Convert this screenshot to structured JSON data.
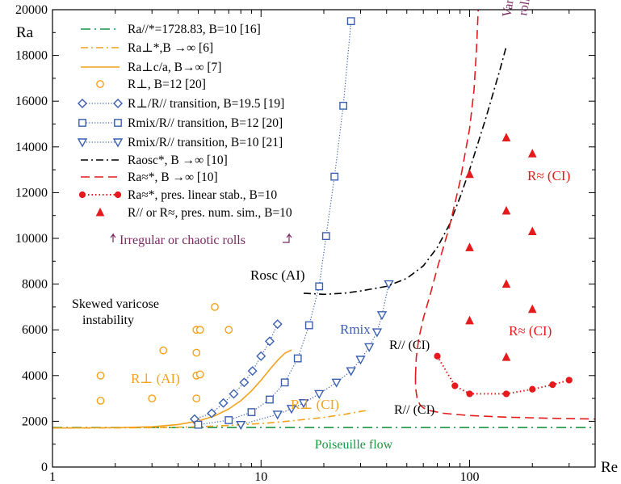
{
  "colors": {
    "green": "#1a9641",
    "orange": "#f4a11c",
    "blue": "#3a5fb0",
    "red": "#e41a1c",
    "purple": "#7a2860",
    "black": "#000000"
  },
  "chart_data": {
    "type": "line",
    "xscale": "log",
    "xlim": [
      1,
      400
    ],
    "ylim": [
      0,
      20000
    ],
    "xlabel": "Re",
    "ylabel": "Ra",
    "xticks": [
      1,
      10,
      100
    ],
    "yticks": [
      0,
      2000,
      4000,
      6000,
      8000,
      10000,
      12000,
      14000,
      16000,
      18000,
      20000
    ],
    "grid": false,
    "legend_position": "top-left",
    "legend": [
      {
        "text": "Ra//*=1728.83, B=10 [16]",
        "style": "dashdot-long",
        "color": "green"
      },
      {
        "text": "Ra⊥*,B →∞ [6]",
        "style": "dashdot",
        "color": "orange"
      },
      {
        "text": "Ra⊥c/a, B→∞ [7]",
        "style": "solid",
        "color": "orange"
      },
      {
        "text": "R⊥, B=12 [20]",
        "style": "circle",
        "color": "orange"
      },
      {
        "text": "R⊥/R// transition, B=19.5 [19]",
        "style": "dotted-diamond",
        "color": "blue"
      },
      {
        "text": "Rmix/R// transition, B=12 [20]",
        "style": "dotted-square",
        "color": "blue"
      },
      {
        "text": "Rmix/R// transition, B=10 [21]",
        "style": "dotted-triangle-down",
        "color": "blue"
      },
      {
        "text": "Raosc*, B →∞ [10]",
        "style": "dashdot",
        "color": "black"
      },
      {
        "text": "Ra≈*, B →∞ [10]",
        "style": "dashed",
        "color": "red"
      },
      {
        "text": "Ra≈*, pres. linear stab., B=10",
        "style": "dotted-dot",
        "color": "red"
      },
      {
        "text": "R// or R≈, pres. num. sim., B=10",
        "style": "triangle-up",
        "color": "red"
      }
    ],
    "series": [
      {
        "id": "ra_par_b10",
        "style": "dashdot-long",
        "color": "green",
        "points": [
          [
            1,
            1728.83
          ],
          [
            400,
            1728.83
          ]
        ]
      },
      {
        "id": "ra_perp_inf",
        "style": "dashdot",
        "color": "orange",
        "points": [
          [
            1,
            1708
          ],
          [
            2,
            1710
          ],
          [
            3,
            1720
          ],
          [
            5,
            1760
          ],
          [
            7,
            1820
          ],
          [
            10,
            1900
          ],
          [
            12,
            1960
          ],
          [
            15,
            2050
          ],
          [
            20,
            2170
          ],
          [
            25,
            2300
          ],
          [
            30,
            2430
          ],
          [
            32,
            2470
          ]
        ]
      },
      {
        "id": "ra_perp_ca",
        "style": "solid",
        "color": "orange",
        "points": [
          [
            1,
            1708
          ],
          [
            2,
            1720
          ],
          [
            3,
            1760
          ],
          [
            4,
            1860
          ],
          [
            5,
            2010
          ],
          [
            6,
            2240
          ],
          [
            7,
            2540
          ],
          [
            8,
            2900
          ],
          [
            9,
            3330
          ],
          [
            10,
            3800
          ],
          [
            11,
            4260
          ],
          [
            12,
            4660
          ],
          [
            13,
            4980
          ],
          [
            14,
            5120
          ]
        ]
      },
      {
        "id": "r_perp_b12",
        "style": "circle",
        "color": "orange",
        "points": [
          [
            1.7,
            2900
          ],
          [
            1.7,
            4000
          ],
          [
            3.0,
            3000
          ],
          [
            3.4,
            5100
          ],
          [
            4.9,
            2000
          ],
          [
            4.9,
            3000
          ],
          [
            4.9,
            4000
          ],
          [
            4.9,
            5000
          ],
          [
            4.9,
            6000
          ],
          [
            5.1,
            4050
          ],
          [
            5.1,
            6000
          ],
          [
            6.0,
            7000
          ],
          [
            7.0,
            6000
          ]
        ]
      },
      {
        "id": "perp_par_b195",
        "style": "dotted-diamond",
        "color": "blue",
        "points": [
          [
            4.8,
            2100
          ],
          [
            5.8,
            2350
          ],
          [
            6.6,
            2800
          ],
          [
            7.4,
            3200
          ],
          [
            8.3,
            3700
          ],
          [
            9.1,
            4200
          ],
          [
            10.0,
            4850
          ],
          [
            11.0,
            5500
          ],
          [
            12.0,
            6250
          ]
        ]
      },
      {
        "id": "mix_par_b12",
        "style": "dotted-square",
        "color": "blue",
        "points": [
          [
            5.0,
            1850
          ],
          [
            7.0,
            2050
          ],
          [
            9.0,
            2400
          ],
          [
            11.0,
            2950
          ],
          [
            13.0,
            3700
          ],
          [
            15.0,
            4750
          ],
          [
            17.0,
            6200
          ],
          [
            19.0,
            7900
          ],
          [
            20.5,
            10100
          ],
          [
            22.5,
            12700
          ],
          [
            24.8,
            15800
          ],
          [
            27.0,
            19500
          ]
        ]
      },
      {
        "id": "mix_par_b10",
        "style": "dotted-triangle-down",
        "color": "blue",
        "points": [
          [
            8.0,
            1850
          ],
          [
            12.0,
            2300
          ],
          [
            14.0,
            2550
          ],
          [
            16.0,
            2800
          ],
          [
            19.0,
            3200
          ],
          [
            23.0,
            3700
          ],
          [
            27.0,
            4200
          ],
          [
            30.0,
            4700
          ],
          [
            33.0,
            5250
          ],
          [
            36.0,
            5900
          ],
          [
            38.0,
            6650
          ],
          [
            41.0,
            8000
          ]
        ]
      },
      {
        "id": "ra_osc_inf",
        "style": "dashdot",
        "color": "black",
        "points": [
          [
            16.0,
            7600
          ],
          [
            20.0,
            7550
          ],
          [
            25.0,
            7600
          ],
          [
            30.0,
            7700
          ],
          [
            40.0,
            7900
          ],
          [
            50.0,
            8250
          ],
          [
            60.0,
            8800
          ],
          [
            70.0,
            9600
          ],
          [
            80.0,
            10600
          ],
          [
            90.0,
            11800
          ],
          [
            100.0,
            13000
          ],
          [
            120.0,
            15300
          ],
          [
            140.0,
            17400
          ],
          [
            150.0,
            18400
          ]
        ]
      },
      {
        "id": "ra_approx_inf_lower",
        "style": "dashed",
        "color": "red",
        "points": [
          [
            55.0,
            4000
          ],
          [
            55.0,
            3500
          ],
          [
            56.0,
            3000
          ],
          [
            58.0,
            2700
          ],
          [
            62.0,
            2500
          ],
          [
            75.0,
            2350
          ],
          [
            100.0,
            2250
          ],
          [
            150.0,
            2180
          ],
          [
            250.0,
            2130
          ],
          [
            400.0,
            2100
          ]
        ]
      },
      {
        "id": "ra_approx_inf_upper",
        "style": "dashed",
        "color": "red",
        "points": [
          [
            55.0,
            4000
          ],
          [
            55.5,
            4800
          ],
          [
            57.0,
            5600
          ],
          [
            60.0,
            6500
          ],
          [
            65.0,
            7600
          ],
          [
            70.0,
            8700
          ],
          [
            80.0,
            10500
          ],
          [
            90.0,
            12500
          ],
          [
            100.0,
            14800
          ],
          [
            105.0,
            16500
          ],
          [
            108.0,
            18300
          ],
          [
            110.0,
            20000
          ]
        ]
      },
      {
        "id": "ra_approx_linear_b10",
        "style": "dotted-dot",
        "color": "red",
        "points": [
          [
            70.0,
            4850
          ],
          [
            85.0,
            3550
          ],
          [
            100.0,
            3200
          ],
          [
            150.0,
            3200
          ],
          [
            200.0,
            3400
          ],
          [
            250.0,
            3600
          ],
          [
            300.0,
            3800
          ]
        ]
      },
      {
        "id": "num_sim_b10",
        "style": "triangle-up",
        "color": "red",
        "points": [
          [
            100,
            12800
          ],
          [
            100,
            9600
          ],
          [
            100,
            6400
          ],
          [
            150,
            14400
          ],
          [
            150,
            11200
          ],
          [
            150,
            8000
          ],
          [
            150,
            4800
          ],
          [
            200,
            13700
          ],
          [
            200,
            10300
          ],
          [
            200,
            6900
          ]
        ]
      }
    ],
    "annotations": [
      {
        "text": "Irregular or chaotic rolls",
        "color": "purple"
      },
      {
        "text": "Varicose",
        "color": "purple"
      },
      {
        "text": "rolls",
        "color": "purple"
      },
      {
        "text": "Skewed varicose",
        "color": "black"
      },
      {
        "text": "instability",
        "color": "black"
      },
      {
        "text": "Rosc (AI)",
        "color": "black"
      },
      {
        "text": "Rmix",
        "color": "blue"
      },
      {
        "text": "R// (CI)",
        "color": "black"
      },
      {
        "text": "R// (CI)",
        "color": "black"
      },
      {
        "text": "R⊥ (AI)",
        "color": "orange"
      },
      {
        "text": "R⊥ (CI)",
        "color": "orange"
      },
      {
        "text": "R≈ (CI)",
        "color": "red"
      },
      {
        "text": "R≈ (CI)",
        "color": "red"
      },
      {
        "text": "Poiseuille flow",
        "color": "green"
      }
    ]
  }
}
